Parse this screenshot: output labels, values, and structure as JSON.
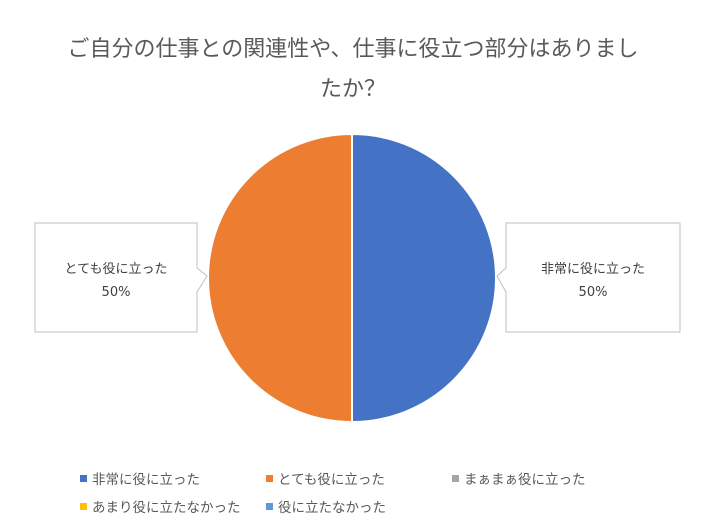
{
  "chart_data": {
    "type": "pie",
    "title": "ご自分の仕事との関連性や、仕事に役立つ部分はありましたか？",
    "categories": [
      "非常に役に立った",
      "とても役に立った",
      "まぁまぁ役に立った",
      "あまり役に立たなかった",
      "役に立たなかった"
    ],
    "values": [
      50,
      50,
      0,
      0,
      0
    ],
    "colors": [
      "#4472C4",
      "#ED7D31",
      "#A5A5A5",
      "#FFC000",
      "#5B9BD5"
    ],
    "data_labels": [
      {
        "category": "非常に役に立った",
        "value": "50%"
      },
      {
        "category": "とても役に立った",
        "value": "50%"
      }
    ],
    "legend": "bottom"
  }
}
